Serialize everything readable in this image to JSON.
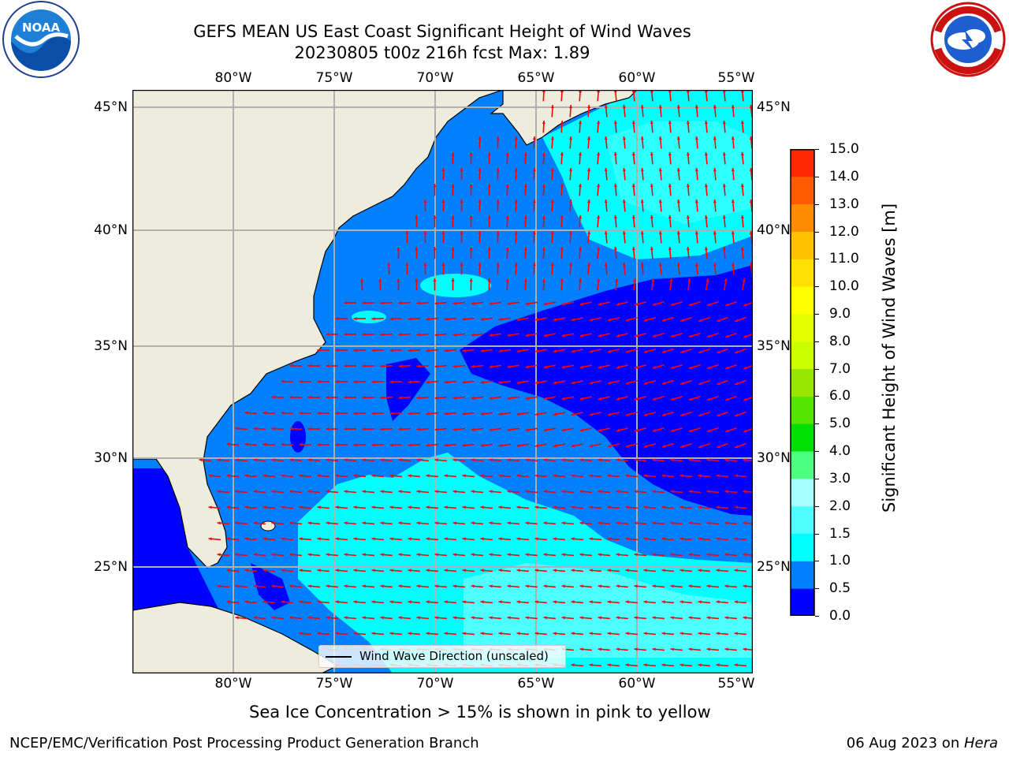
{
  "title": {
    "line1": "GEFS MEAN US East Coast Significant Height of Wind Waves",
    "line2": "20230805 t00z 216h fcst   Max: 1.89"
  },
  "map": {
    "lon_ticks": [
      "80°W",
      "75°W",
      "70°W",
      "65°W",
      "60°W",
      "55°W"
    ],
    "lat_ticks": [
      "45°N",
      "40°N",
      "35°N",
      "30°N",
      "25°N"
    ],
    "legend_label": "Wind Wave Direction (unscaled)",
    "arrow_color": "#ff0000",
    "land_color": "#eeecdc",
    "field_colors": {
      "0.0-0.5": "#0000ff",
      "0.5-1.0": "#0080ff",
      "1.0-1.5": "#00ffff",
      "1.5-2.0": "#4dffff"
    }
  },
  "colorbar": {
    "label": "Significant Height of Wind Waves [m]",
    "levels": [
      "0.0",
      "0.5",
      "1.0",
      "1.5",
      "2.0",
      "3.0",
      "4.0",
      "5.0",
      "6.0",
      "7.0",
      "8.0",
      "9.0",
      "10.0",
      "11.0",
      "12.0",
      "13.0",
      "14.0",
      "15.0"
    ],
    "colors": [
      "#0000ff",
      "#0080ff",
      "#00ffff",
      "#4dffff",
      "#a6ffff",
      "#4cff7f",
      "#00e000",
      "#55e600",
      "#99e600",
      "#ccff00",
      "#e6ff00",
      "#ffff00",
      "#ffe000",
      "#ffc000",
      "#ff8c00",
      "#ff5a00",
      "#ff2800"
    ]
  },
  "notes": {
    "sea_ice": "Sea Ice Concentration > 15% is shown in pink to yellow"
  },
  "footer": {
    "left": "NCEP/EMC/Verification Post Processing Product Generation Branch",
    "date": "06 Aug 2023 on ",
    "machine": "Hera"
  },
  "logos": {
    "noaa": "NOAA",
    "nws": "NATIONAL WEATHER SERVICE"
  }
}
